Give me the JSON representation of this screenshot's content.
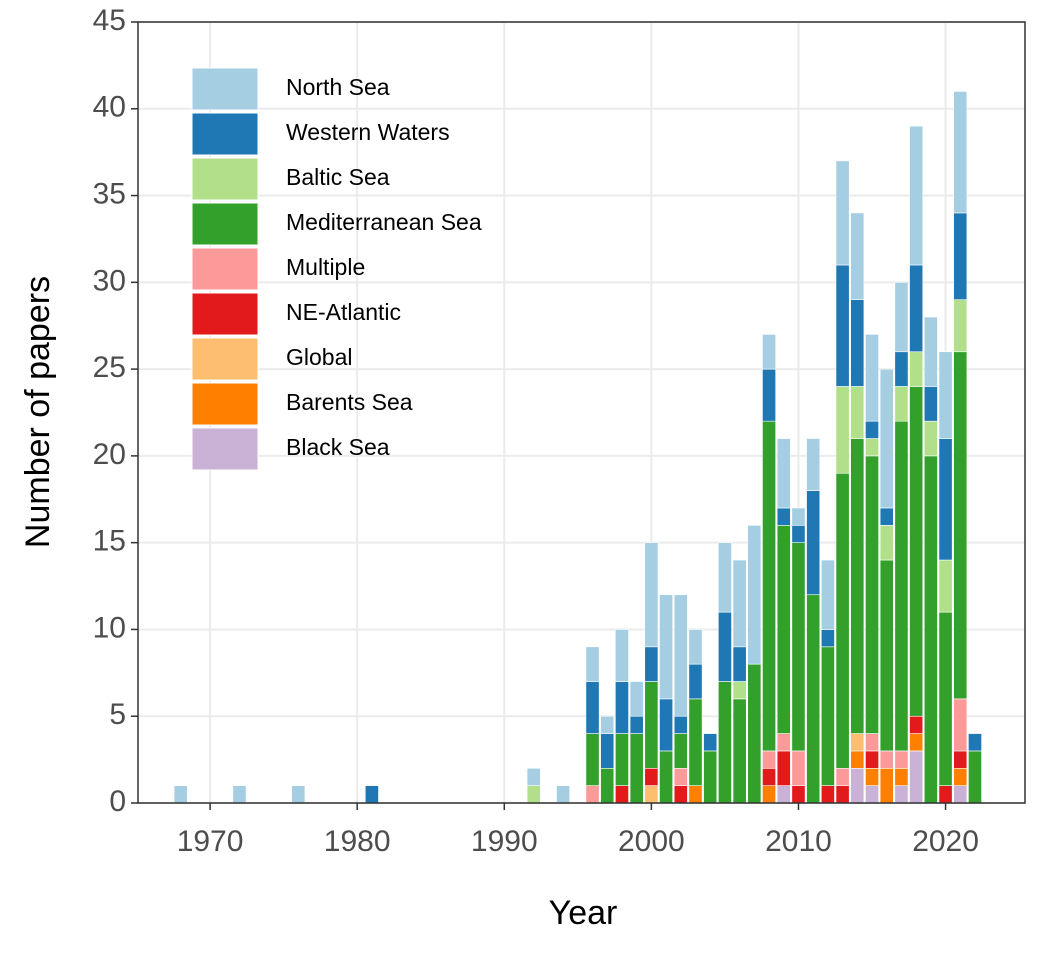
{
  "chart_data": {
    "type": "stacked_bar",
    "x_label": "Year",
    "y_label": "Number of papers",
    "x": [
      1968,
      1972,
      1976,
      1981,
      1992,
      1994,
      1996,
      1997,
      1998,
      1999,
      2000,
      2001,
      2002,
      2003,
      2004,
      2005,
      2006,
      2007,
      2008,
      2009,
      2010,
      2011,
      2012,
      2013,
      2014,
      2015,
      2016,
      2017,
      2018,
      2019,
      2020,
      2021,
      2022
    ],
    "series": [
      {
        "name": "North Sea",
        "color": "#a6cee3",
        "values": [
          1,
          1,
          1,
          0,
          1,
          1,
          2,
          1,
          3,
          2,
          6,
          6,
          7,
          2,
          0,
          4,
          5,
          8,
          2,
          4,
          1,
          3,
          4,
          6,
          5,
          5,
          8,
          4,
          8,
          4,
          5,
          7,
          0
        ]
      },
      {
        "name": "Western Waters",
        "color": "#1f78b4",
        "values": [
          0,
          0,
          0,
          1,
          0,
          0,
          3,
          2,
          3,
          1,
          2,
          3,
          1,
          2,
          1,
          4,
          2,
          0,
          3,
          1,
          1,
          6,
          1,
          7,
          5,
          1,
          1,
          2,
          5,
          2,
          7,
          5,
          1
        ]
      },
      {
        "name": "Baltic Sea",
        "color": "#b2df8a",
        "values": [
          0,
          0,
          0,
          0,
          1,
          0,
          0,
          0,
          0,
          0,
          0,
          0,
          0,
          0,
          0,
          0,
          1,
          0,
          0,
          0,
          0,
          0,
          0,
          5,
          3,
          1,
          2,
          2,
          2,
          2,
          3,
          3,
          0
        ]
      },
      {
        "name": "Mediterranean Sea",
        "color": "#33a02c",
        "values": [
          0,
          0,
          0,
          0,
          0,
          0,
          3,
          2,
          3,
          4,
          5,
          3,
          2,
          5,
          3,
          7,
          6,
          8,
          19,
          12,
          12,
          12,
          8,
          17,
          17,
          16,
          11,
          19,
          19,
          20,
          10,
          20,
          3
        ]
      },
      {
        "name": "Multiple",
        "color": "#fb9a99",
        "values": [
          0,
          0,
          0,
          0,
          0,
          0,
          1,
          0,
          0,
          0,
          0,
          0,
          1,
          0,
          0,
          0,
          0,
          0,
          1,
          1,
          2,
          0,
          0,
          1,
          0,
          1,
          1,
          1,
          0,
          0,
          0,
          3,
          0
        ]
      },
      {
        "name": "NE-Atlantic",
        "color": "#e31a1c",
        "values": [
          0,
          0,
          0,
          0,
          0,
          0,
          0,
          0,
          1,
          0,
          1,
          0,
          1,
          0,
          0,
          0,
          0,
          0,
          1,
          2,
          1,
          0,
          1,
          1,
          0,
          1,
          0,
          0,
          1,
          0,
          1,
          1,
          0
        ]
      },
      {
        "name": "Global",
        "color": "#fdbf6f",
        "values": [
          0,
          0,
          0,
          0,
          0,
          0,
          0,
          0,
          0,
          0,
          1,
          0,
          0,
          0,
          0,
          0,
          0,
          0,
          0,
          0,
          0,
          0,
          0,
          0,
          1,
          0,
          0,
          0,
          0,
          0,
          0,
          0,
          0
        ]
      },
      {
        "name": "Barents Sea",
        "color": "#ff7f00",
        "values": [
          0,
          0,
          0,
          0,
          0,
          0,
          0,
          0,
          0,
          0,
          0,
          0,
          0,
          1,
          0,
          0,
          0,
          0,
          1,
          0,
          0,
          0,
          0,
          0,
          1,
          1,
          2,
          1,
          1,
          0,
          0,
          1,
          0
        ]
      },
      {
        "name": "Black Sea",
        "color": "#cab2d6",
        "values": [
          0,
          0,
          0,
          0,
          0,
          0,
          0,
          0,
          0,
          0,
          0,
          0,
          0,
          0,
          0,
          0,
          0,
          0,
          0,
          1,
          0,
          0,
          0,
          0,
          2,
          1,
          0,
          1,
          3,
          0,
          0,
          1,
          0
        ]
      }
    ],
    "xlim": [
      1965.1,
      2025.4
    ],
    "xticks": [
      1970,
      1980,
      1990,
      2000,
      2010,
      2020
    ],
    "ylim": [
      0,
      45
    ],
    "yticks": [
      0,
      5,
      10,
      15,
      20,
      25,
      30,
      35,
      40,
      45
    ],
    "grid": true,
    "legend": "top-left"
  }
}
